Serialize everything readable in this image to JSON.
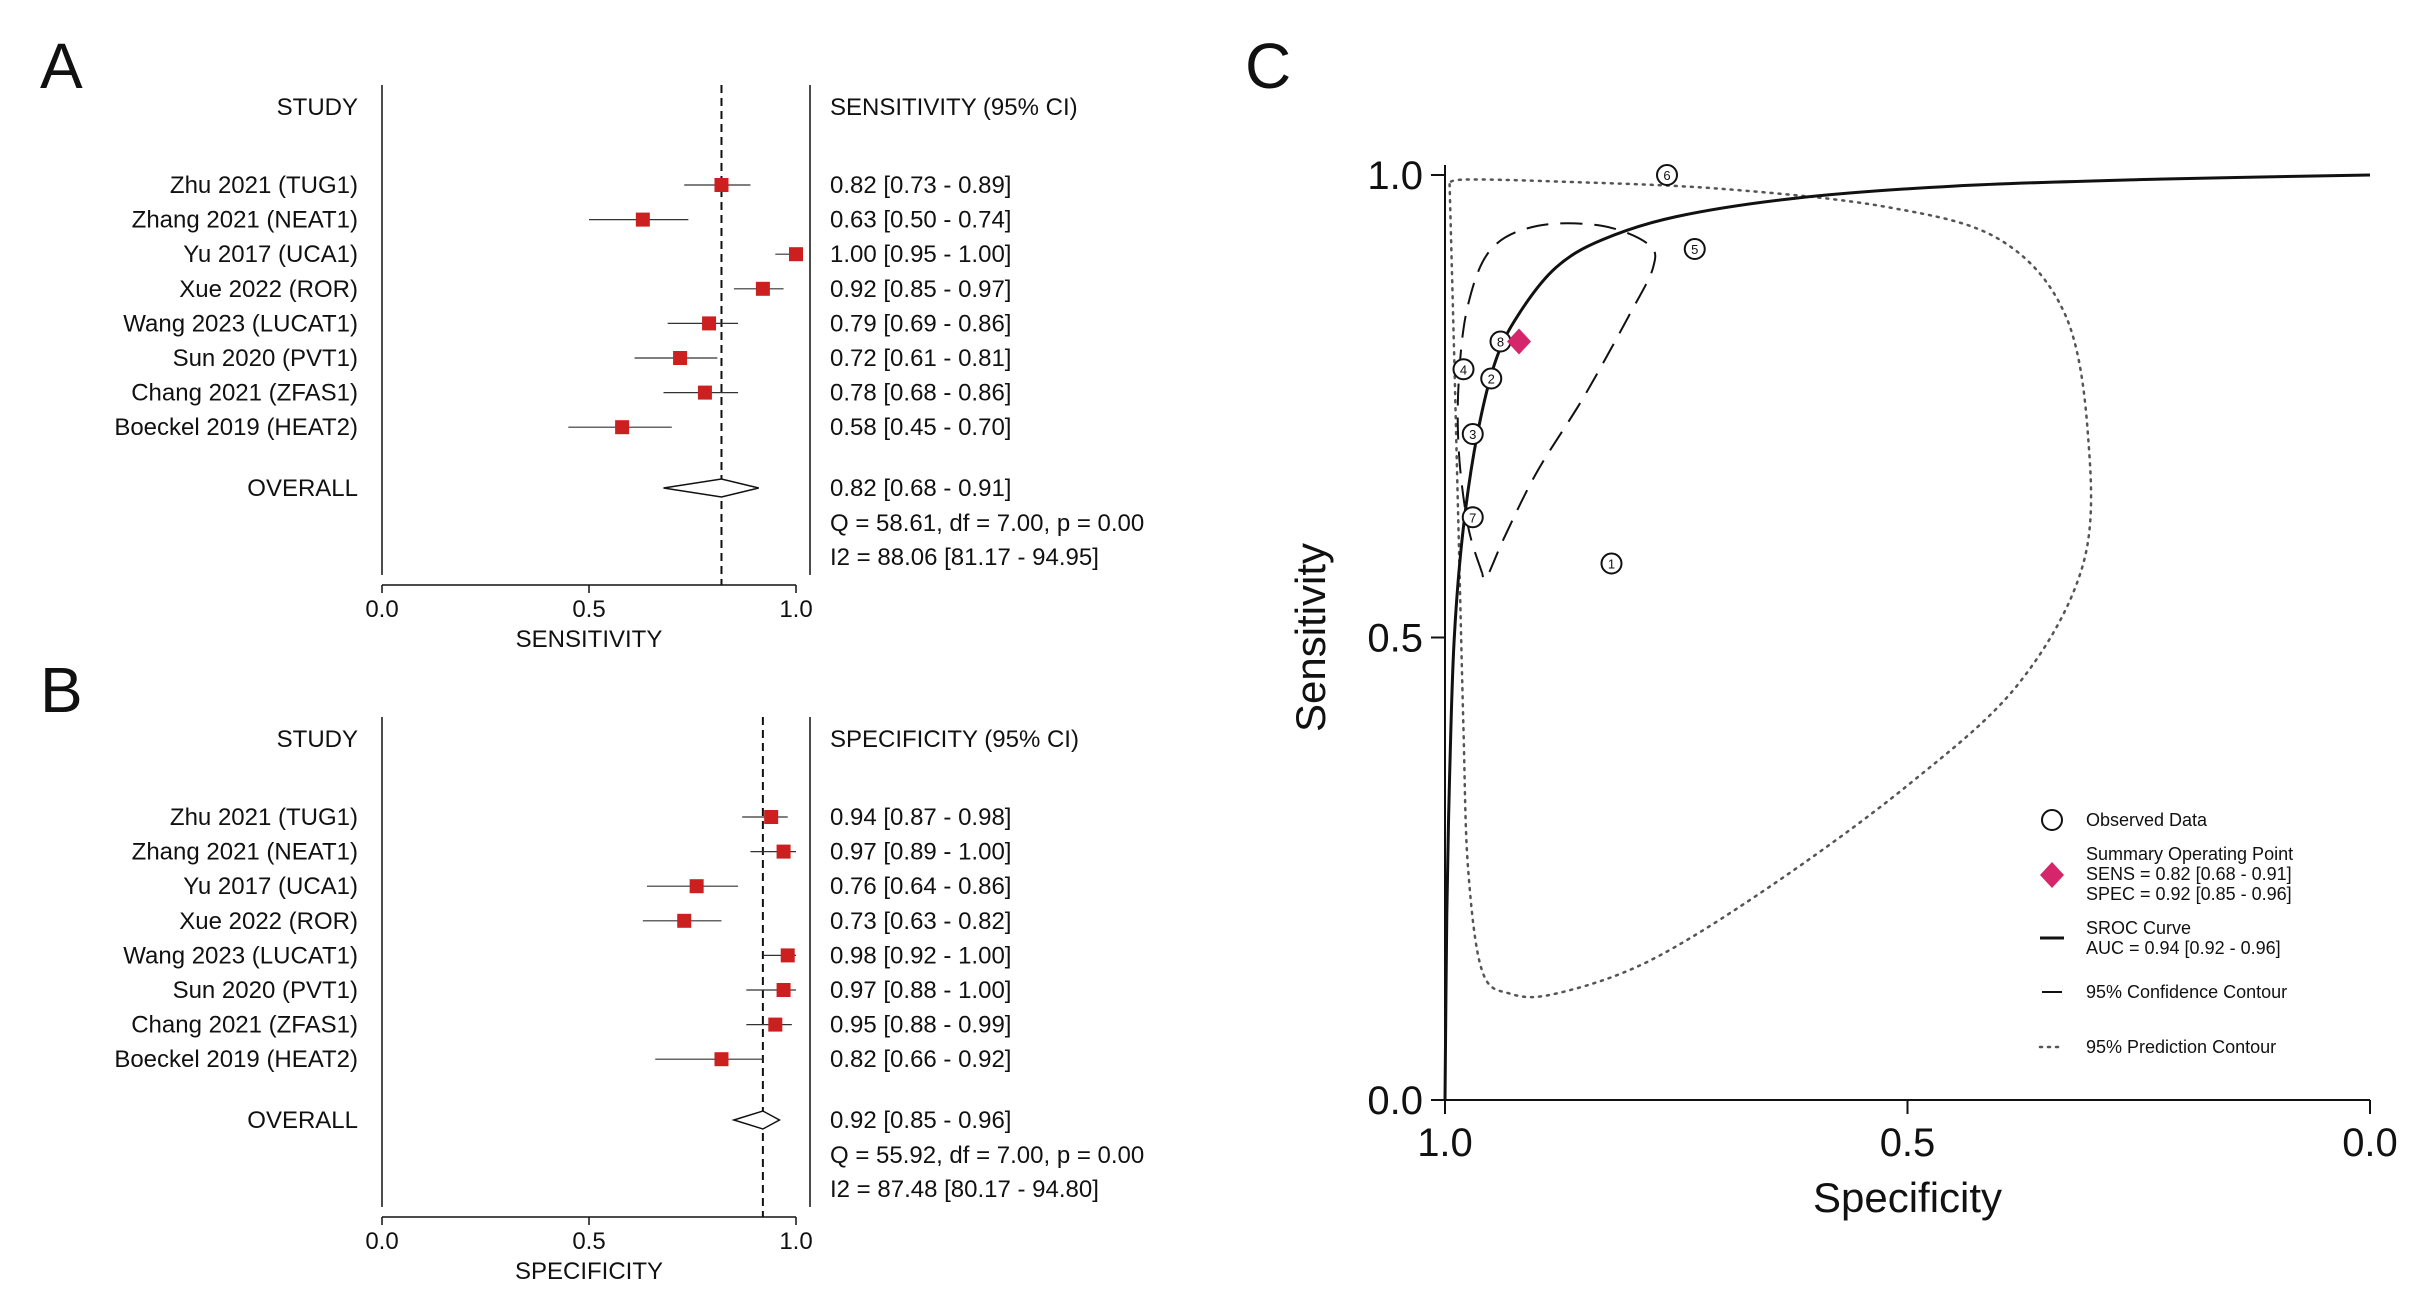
{
  "panels": {
    "A": "A",
    "B": "B",
    "C": "C"
  },
  "colors": {
    "marker": "#cc1f1f",
    "summary": "#d6266b",
    "line": "#111111"
  },
  "chart_data": [
    {
      "type": "forest",
      "panel": "A",
      "study_header": "STUDY",
      "ci_header": "SENSITIVITY (95% CI)",
      "xlabel": "SENSITIVITY",
      "xlim": [
        0,
        1
      ],
      "ticks": [
        "0.0",
        "0.5",
        "1.0"
      ],
      "tick_values": [
        0,
        0.5,
        1
      ],
      "ref_line": 0.82,
      "studies": [
        {
          "name": "Zhu 2021 (TUG1)",
          "est": 0.82,
          "lo": 0.73,
          "hi": 0.89,
          "ci": "0.82 [0.73 - 0.89]"
        },
        {
          "name": "Zhang 2021 (NEAT1)",
          "est": 0.63,
          "lo": 0.5,
          "hi": 0.74,
          "ci": "0.63 [0.50 - 0.74]"
        },
        {
          "name": "Yu 2017 (UCA1)",
          "est": 1.0,
          "lo": 0.95,
          "hi": 1.0,
          "ci": "1.00 [0.95 - 1.00]"
        },
        {
          "name": "Xue 2022 (ROR)",
          "est": 0.92,
          "lo": 0.85,
          "hi": 0.97,
          "ci": "0.92 [0.85 - 0.97]"
        },
        {
          "name": "Wang 2023 (LUCAT1)",
          "est": 0.79,
          "lo": 0.69,
          "hi": 0.86,
          "ci": "0.79 [0.69 - 0.86]"
        },
        {
          "name": "Sun 2020 (PVT1)",
          "est": 0.72,
          "lo": 0.61,
          "hi": 0.81,
          "ci": "0.72 [0.61 - 0.81]"
        },
        {
          "name": "Chang 2021 (ZFAS1)",
          "est": 0.78,
          "lo": 0.68,
          "hi": 0.86,
          "ci": "0.78 [0.68 - 0.86]"
        },
        {
          "name": "Boeckel 2019 (HEAT2)",
          "est": 0.58,
          "lo": 0.45,
          "hi": 0.7,
          "ci": "0.58 [0.45 - 0.70]"
        }
      ],
      "overall": {
        "name": "OVERALL",
        "est": 0.82,
        "lo": 0.68,
        "hi": 0.91,
        "ci": "0.82 [0.68 - 0.91]"
      },
      "stats": [
        "Q = 58.61, df = 7.00, p =  0.00",
        "I2 = 88.06 [81.17 - 94.95]"
      ]
    },
    {
      "type": "forest",
      "panel": "B",
      "study_header": "STUDY",
      "ci_header": "SPECIFICITY (95% CI)",
      "xlabel": "SPECIFICITY",
      "xlim": [
        0,
        1
      ],
      "ticks": [
        "0.0",
        "0.5",
        "1.0"
      ],
      "tick_values": [
        0,
        0.5,
        1
      ],
      "ref_line": 0.92,
      "studies": [
        {
          "name": "Zhu 2021 (TUG1)",
          "est": 0.94,
          "lo": 0.87,
          "hi": 0.98,
          "ci": "0.94 [0.87 - 0.98]"
        },
        {
          "name": "Zhang 2021 (NEAT1)",
          "est": 0.97,
          "lo": 0.89,
          "hi": 1.0,
          "ci": "0.97 [0.89 - 1.00]"
        },
        {
          "name": "Yu 2017 (UCA1)",
          "est": 0.76,
          "lo": 0.64,
          "hi": 0.86,
          "ci": "0.76 [0.64 - 0.86]"
        },
        {
          "name": "Xue 2022 (ROR)",
          "est": 0.73,
          "lo": 0.63,
          "hi": 0.82,
          "ci": "0.73 [0.63 - 0.82]"
        },
        {
          "name": "Wang 2023 (LUCAT1)",
          "est": 0.98,
          "lo": 0.92,
          "hi": 1.0,
          "ci": "0.98 [0.92 - 1.00]"
        },
        {
          "name": "Sun 2020 (PVT1)",
          "est": 0.97,
          "lo": 0.88,
          "hi": 1.0,
          "ci": "0.97 [0.88 - 1.00]"
        },
        {
          "name": "Chang 2021 (ZFAS1)",
          "est": 0.95,
          "lo": 0.88,
          "hi": 0.99,
          "ci": "0.95 [0.88 - 0.99]"
        },
        {
          "name": "Boeckel 2019 (HEAT2)",
          "est": 0.82,
          "lo": 0.66,
          "hi": 0.92,
          "ci": "0.82 [0.66 - 0.92]"
        }
      ],
      "overall": {
        "name": "OVERALL",
        "est": 0.92,
        "lo": 0.85,
        "hi": 0.96,
        "ci": "0.92 [0.85 - 0.96]"
      },
      "stats": [
        "Q = 55.92, df = 7.00, p =  0.00",
        "I2 = 87.48 [80.17 - 94.80]"
      ]
    },
    {
      "type": "sroc",
      "panel": "C",
      "xlabel": "Specificity",
      "ylabel": "Sensitivity",
      "xlim": [
        1.0,
        0.0
      ],
      "ylim": [
        0.0,
        1.0
      ],
      "xticks": [
        "1.0",
        "0.5",
        "0.0"
      ],
      "xtick_values": [
        1.0,
        0.5,
        0.0
      ],
      "yticks": [
        "0.0",
        "0.5",
        "1.0"
      ],
      "ytick_values": [
        0.0,
        0.5,
        1.0
      ],
      "observed": [
        {
          "label": "1",
          "spec": 0.82,
          "sens": 0.58
        },
        {
          "label": "2",
          "spec": 0.95,
          "sens": 0.78
        },
        {
          "label": "3",
          "spec": 0.97,
          "sens": 0.72
        },
        {
          "label": "4",
          "spec": 0.98,
          "sens": 0.79
        },
        {
          "label": "5",
          "spec": 0.73,
          "sens": 0.92
        },
        {
          "label": "6",
          "spec": 0.76,
          "sens": 1.0
        },
        {
          "label": "7",
          "spec": 0.97,
          "sens": 0.63
        },
        {
          "label": "8",
          "spec": 0.94,
          "sens": 0.82
        }
      ],
      "summary_point": {
        "spec": 0.92,
        "sens": 0.82
      },
      "sroc_curve": [
        {
          "spec": 1.0,
          "sens": 0.0
        },
        {
          "spec": 0.998,
          "sens": 0.2
        },
        {
          "spec": 0.995,
          "sens": 0.35
        },
        {
          "spec": 0.99,
          "sens": 0.5
        },
        {
          "spec": 0.98,
          "sens": 0.62
        },
        {
          "spec": 0.965,
          "sens": 0.72
        },
        {
          "spec": 0.945,
          "sens": 0.8
        },
        {
          "spec": 0.92,
          "sens": 0.85
        },
        {
          "spec": 0.88,
          "sens": 0.9
        },
        {
          "spec": 0.83,
          "sens": 0.93
        },
        {
          "spec": 0.75,
          "sens": 0.955
        },
        {
          "spec": 0.62,
          "sens": 0.975
        },
        {
          "spec": 0.45,
          "sens": 0.988
        },
        {
          "spec": 0.25,
          "sens": 0.995
        },
        {
          "spec": 0.0,
          "sens": 1.0
        }
      ],
      "confidence_contour": [
        {
          "spec": 0.96,
          "sens": 0.57
        },
        {
          "spec": 0.975,
          "sens": 0.62
        },
        {
          "spec": 0.985,
          "sens": 0.7
        },
        {
          "spec": 0.985,
          "sens": 0.78
        },
        {
          "spec": 0.975,
          "sens": 0.86
        },
        {
          "spec": 0.95,
          "sens": 0.92
        },
        {
          "spec": 0.9,
          "sens": 0.945
        },
        {
          "spec": 0.83,
          "sens": 0.945
        },
        {
          "spec": 0.78,
          "sens": 0.925
        },
        {
          "spec": 0.775,
          "sens": 0.9
        },
        {
          "spec": 0.8,
          "sens": 0.85
        },
        {
          "spec": 0.85,
          "sens": 0.76
        },
        {
          "spec": 0.9,
          "sens": 0.68
        },
        {
          "spec": 0.935,
          "sens": 0.61
        },
        {
          "spec": 0.955,
          "sens": 0.565
        },
        {
          "spec": 0.96,
          "sens": 0.57
        }
      ],
      "prediction_contour": [
        {
          "spec": 0.995,
          "sens": 0.99
        },
        {
          "spec": 0.99,
          "sens": 0.8
        },
        {
          "spec": 0.985,
          "sens": 0.6
        },
        {
          "spec": 0.98,
          "sens": 0.4
        },
        {
          "spec": 0.975,
          "sens": 0.25
        },
        {
          "spec": 0.96,
          "sens": 0.14
        },
        {
          "spec": 0.93,
          "sens": 0.115
        },
        {
          "spec": 0.88,
          "sens": 0.115
        },
        {
          "spec": 0.78,
          "sens": 0.15
        },
        {
          "spec": 0.65,
          "sens": 0.23
        },
        {
          "spec": 0.5,
          "sens": 0.34
        },
        {
          "spec": 0.38,
          "sens": 0.45
        },
        {
          "spec": 0.31,
          "sens": 0.58
        },
        {
          "spec": 0.305,
          "sens": 0.72
        },
        {
          "spec": 0.33,
          "sens": 0.85
        },
        {
          "spec": 0.4,
          "sens": 0.93
        },
        {
          "spec": 0.52,
          "sens": 0.965
        },
        {
          "spec": 0.7,
          "sens": 0.985
        },
        {
          "spec": 0.88,
          "sens": 0.993
        },
        {
          "spec": 0.98,
          "sens": 0.995
        },
        {
          "spec": 0.995,
          "sens": 0.99
        }
      ],
      "legend": {
        "observed": "Observed Data",
        "summary": "Summary Operating Point",
        "sens": "SENS = 0.82 [0.68 - 0.91]",
        "spec": "SPEC = 0.92 [0.85 - 0.96]",
        "sroc": "SROC Curve",
        "auc": "AUC = 0.94 [0.92 - 0.96]",
        "conf": "95% Confidence Contour",
        "pred": "95% Prediction Contour"
      }
    }
  ]
}
